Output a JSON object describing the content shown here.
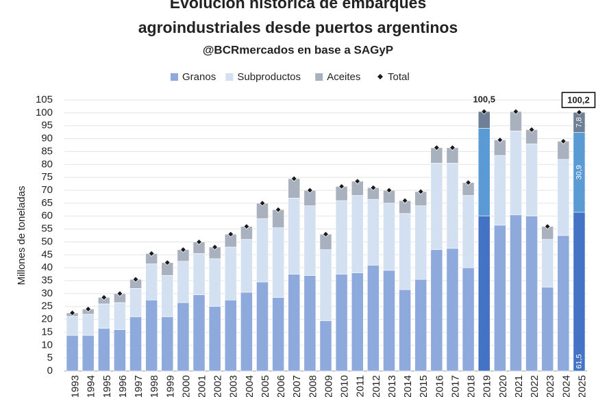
{
  "chart_data": {
    "type": "stacked-bar",
    "title": "Evolución histórica de embarques",
    "title_line2": "agroindustriales desde puertos argentinos",
    "subtitle": "@BCRmercados en base a SAGyP",
    "y_label": "Millones de toneladas",
    "categories": [
      "1993",
      "1994",
      "1995",
      "1996",
      "1997",
      "1998",
      "1999",
      "2000",
      "2001",
      "2002",
      "2003",
      "2004",
      "2005",
      "2006",
      "2007",
      "2008",
      "2009",
      "2010",
      "2011",
      "2012",
      "2013",
      "2014",
      "2015",
      "2016",
      "2017",
      "2018",
      "2019",
      "2020",
      "2021",
      "2022",
      "2023",
      "2024",
      "2025"
    ],
    "highlight": [
      "2019",
      "2025"
    ],
    "series": [
      {
        "name": "Granos",
        "color": "#8ea9db",
        "highlight_color": "#4472c4",
        "values": [
          13.8,
          13.8,
          16.5,
          16,
          21,
          27.5,
          21,
          26.5,
          29.5,
          25,
          27.5,
          30.5,
          34.5,
          28.5,
          37.5,
          37,
          19.5,
          37.5,
          38,
          41,
          39,
          31.5,
          35.5,
          47,
          47.5,
          40,
          60,
          56.5,
          60.5,
          60,
          32.5,
          52.5,
          61.5
        ],
        "value_labels": [
          null,
          null,
          null,
          null,
          null,
          null,
          null,
          null,
          null,
          null,
          null,
          null,
          null,
          null,
          null,
          null,
          null,
          null,
          null,
          null,
          null,
          null,
          null,
          null,
          null,
          null,
          null,
          null,
          null,
          null,
          null,
          null,
          "61,5"
        ]
      },
      {
        "name": "Subproductos",
        "color": "#d3e0f2",
        "highlight_color": "#5b9bd5",
        "values": [
          7.4,
          8.2,
          9.5,
          10.5,
          11,
          14,
          16,
          16,
          16,
          18.5,
          20.5,
          20.5,
          24.5,
          27,
          29.5,
          27,
          27.5,
          28.5,
          30,
          25.5,
          26,
          29.5,
          28.5,
          33.5,
          33,
          28,
          34,
          27,
          32.5,
          28,
          18.5,
          29.5,
          30.9
        ],
        "value_labels": [
          null,
          null,
          null,
          null,
          null,
          null,
          null,
          null,
          null,
          null,
          null,
          null,
          null,
          null,
          null,
          null,
          null,
          null,
          null,
          null,
          null,
          null,
          null,
          null,
          null,
          null,
          null,
          null,
          null,
          null,
          null,
          null,
          "30,9"
        ]
      },
      {
        "name": "Aceites",
        "color": "#a9b1bf",
        "highlight_color": "#6f7f95",
        "values": [
          1.3,
          2,
          2.5,
          3.5,
          3.5,
          4,
          5,
          4.5,
          4.5,
          4.5,
          5,
          5,
          6,
          7,
          7.5,
          6,
          6,
          5.5,
          5.5,
          4.5,
          5,
          5,
          5.5,
          6,
          6,
          5,
          6.5,
          6,
          7.5,
          5.5,
          5,
          7,
          7.8
        ],
        "value_labels": [
          null,
          null,
          null,
          null,
          null,
          null,
          null,
          null,
          null,
          null,
          null,
          null,
          null,
          null,
          null,
          null,
          null,
          null,
          null,
          null,
          null,
          null,
          null,
          null,
          null,
          null,
          null,
          null,
          null,
          null,
          null,
          null,
          "7,8"
        ]
      }
    ],
    "total": {
      "name": "Total",
      "color": "#1a1a1a",
      "values": [
        22.5,
        24,
        28.5,
        30,
        35.5,
        45.5,
        42,
        47,
        50,
        48,
        53,
        56,
        65,
        62.5,
        74.5,
        70,
        53,
        71.5,
        73.5,
        71,
        70,
        66,
        69.5,
        86.5,
        86.5,
        73,
        100.5,
        89.5,
        100.5,
        93.5,
        56,
        89,
        100.2
      ],
      "value_labels": [
        null,
        null,
        null,
        null,
        null,
        null,
        null,
        null,
        null,
        null,
        null,
        null,
        null,
        null,
        null,
        null,
        null,
        null,
        null,
        null,
        null,
        null,
        null,
        null,
        null,
        null,
        "100,5",
        null,
        null,
        null,
        null,
        null,
        "100,2"
      ]
    },
    "ylim": [
      0,
      105
    ],
    "yticks": [
      0,
      5,
      10,
      15,
      20,
      25,
      30,
      35,
      40,
      45,
      50,
      55,
      60,
      65,
      70,
      75,
      80,
      85,
      90,
      95,
      100,
      105
    ],
    "grid": true,
    "legend": "top"
  }
}
